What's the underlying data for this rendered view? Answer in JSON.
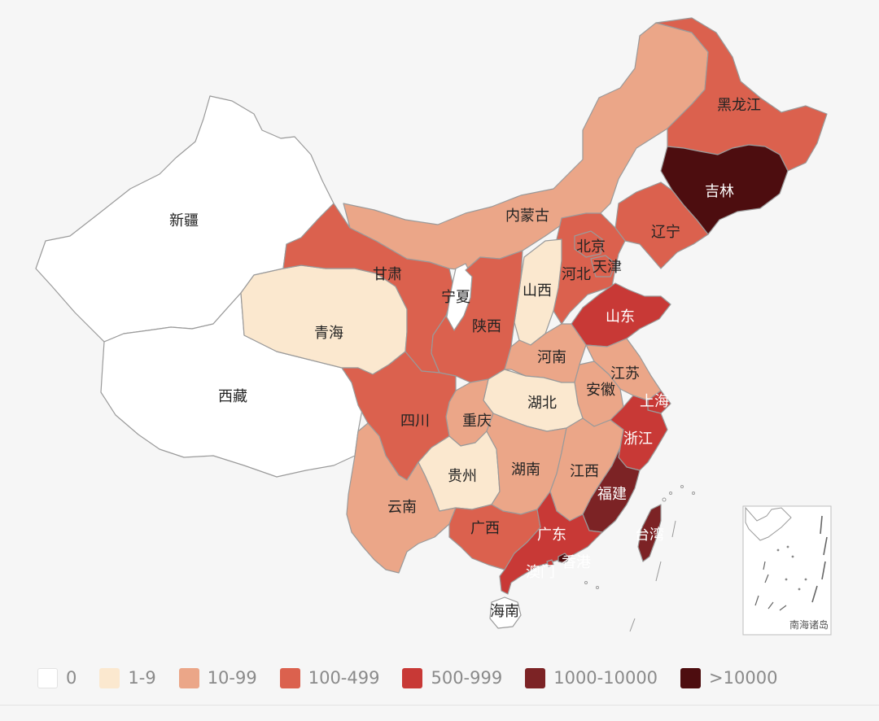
{
  "colors": {
    "c0": "#ffffff",
    "c1": "#fbe8cf",
    "c2": "#eba688",
    "c3": "#db614e",
    "c4": "#c83936",
    "c5": "#7c2325",
    "c6": "#4d0d0f"
  },
  "legend": [
    {
      "label": "0",
      "level": "c0"
    },
    {
      "label": "1-9",
      "level": "c1"
    },
    {
      "label": "10-99",
      "level": "c2"
    },
    {
      "label": "100-499",
      "level": "c3"
    },
    {
      "label": "500-999",
      "level": "c4"
    },
    {
      "label": "1000-10000",
      "level": "c5"
    },
    {
      "label": ">10000",
      "level": "c6"
    }
  ],
  "regions": [
    {
      "name": "新疆",
      "level": "c0"
    },
    {
      "name": "西藏",
      "level": "c0"
    },
    {
      "name": "青海",
      "level": "c1"
    },
    {
      "name": "甘肃",
      "level": "c3"
    },
    {
      "name": "宁夏",
      "level": "c0"
    },
    {
      "name": "内蒙古",
      "level": "c2"
    },
    {
      "name": "黑龙江",
      "level": "c3"
    },
    {
      "name": "吉林",
      "level": "c6"
    },
    {
      "name": "辽宁",
      "level": "c3"
    },
    {
      "name": "北京",
      "level": "c3"
    },
    {
      "name": "天津",
      "level": "c3"
    },
    {
      "name": "河北",
      "level": "c3"
    },
    {
      "name": "山西",
      "level": "c1"
    },
    {
      "name": "陕西",
      "level": "c3"
    },
    {
      "name": "山东",
      "level": "c4"
    },
    {
      "name": "河南",
      "level": "c2"
    },
    {
      "name": "江苏",
      "level": "c2"
    },
    {
      "name": "安徽",
      "level": "c2"
    },
    {
      "name": "上海",
      "level": "c4"
    },
    {
      "name": "湖北",
      "level": "c1"
    },
    {
      "name": "四川",
      "level": "c3"
    },
    {
      "name": "重庆",
      "level": "c2"
    },
    {
      "name": "浙江",
      "level": "c4"
    },
    {
      "name": "贵州",
      "level": "c1"
    },
    {
      "name": "湖南",
      "level": "c2"
    },
    {
      "name": "江西",
      "level": "c2"
    },
    {
      "name": "福建",
      "level": "c5"
    },
    {
      "name": "台湾",
      "level": "c5"
    },
    {
      "name": "云南",
      "level": "c2"
    },
    {
      "name": "广西",
      "level": "c3"
    },
    {
      "name": "广东",
      "level": "c4"
    },
    {
      "name": "澳门",
      "level": "c4"
    },
    {
      "name": "香港",
      "level": "c6"
    },
    {
      "name": "海南",
      "level": "c0"
    }
  ],
  "inset": {
    "label": "南海诸岛"
  }
}
